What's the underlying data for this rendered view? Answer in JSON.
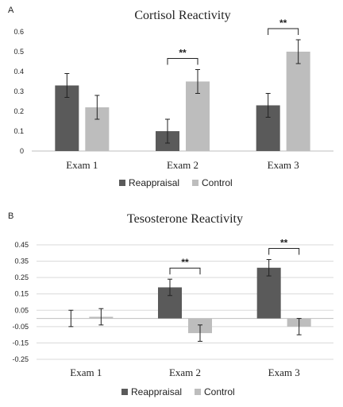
{
  "colors": {
    "reappraisal": "#5a5a5a",
    "control": "#bdbdbd",
    "grid": "#d9d9d9",
    "text": "#222222"
  },
  "chart_data": [
    {
      "panel_label": "A",
      "type": "bar",
      "title": "Cortisol Reactivity",
      "categories": [
        "Exam 1",
        "Exam 2",
        "Exam 3"
      ],
      "series": [
        {
          "name": "Reappraisal",
          "values": [
            0.33,
            0.1,
            0.23
          ],
          "errors": [
            0.06,
            0.06,
            0.06
          ]
        },
        {
          "name": "Control",
          "values": [
            0.22,
            0.35,
            0.5
          ],
          "errors": [
            0.06,
            0.06,
            0.06
          ]
        }
      ],
      "ylim": [
        0,
        0.6
      ],
      "yticks": [
        0,
        0.1,
        0.2,
        0.3,
        0.4,
        0.5,
        0.6
      ],
      "ytick_labels": [
        "0",
        "0.1",
        "0.2",
        "0.3",
        "0.4",
        "0.5",
        "0.6"
      ],
      "significance": [
        {
          "category": "Exam 2",
          "label": "**"
        },
        {
          "category": "Exam 3",
          "label": "**"
        }
      ],
      "grid": false,
      "legend_position": "bottom"
    },
    {
      "panel_label": "B",
      "type": "bar",
      "title": "Tesosterone Reactivity",
      "categories": [
        "Exam 1",
        "Exam 2",
        "Exam 3"
      ],
      "series": [
        {
          "name": "Reappraisal",
          "values": [
            0.0,
            0.19,
            0.31
          ],
          "errors": [
            0.05,
            0.05,
            0.05
          ]
        },
        {
          "name": "Control",
          "values": [
            0.01,
            -0.09,
            -0.05
          ],
          "errors": [
            0.05,
            0.05,
            0.05
          ]
        }
      ],
      "ylim": [
        -0.25,
        0.45
      ],
      "yticks": [
        -0.25,
        -0.15,
        -0.05,
        0.05,
        0.15,
        0.25,
        0.35,
        0.45
      ],
      "ytick_labels": [
        "-0.25",
        "-0.15",
        "-0.05",
        "0.05",
        "0.15",
        "0.25",
        "0.35",
        "0.45"
      ],
      "significance": [
        {
          "category": "Exam 2",
          "label": "**"
        },
        {
          "category": "Exam 3",
          "label": "**"
        }
      ],
      "grid": true,
      "legend_position": "bottom"
    }
  ]
}
